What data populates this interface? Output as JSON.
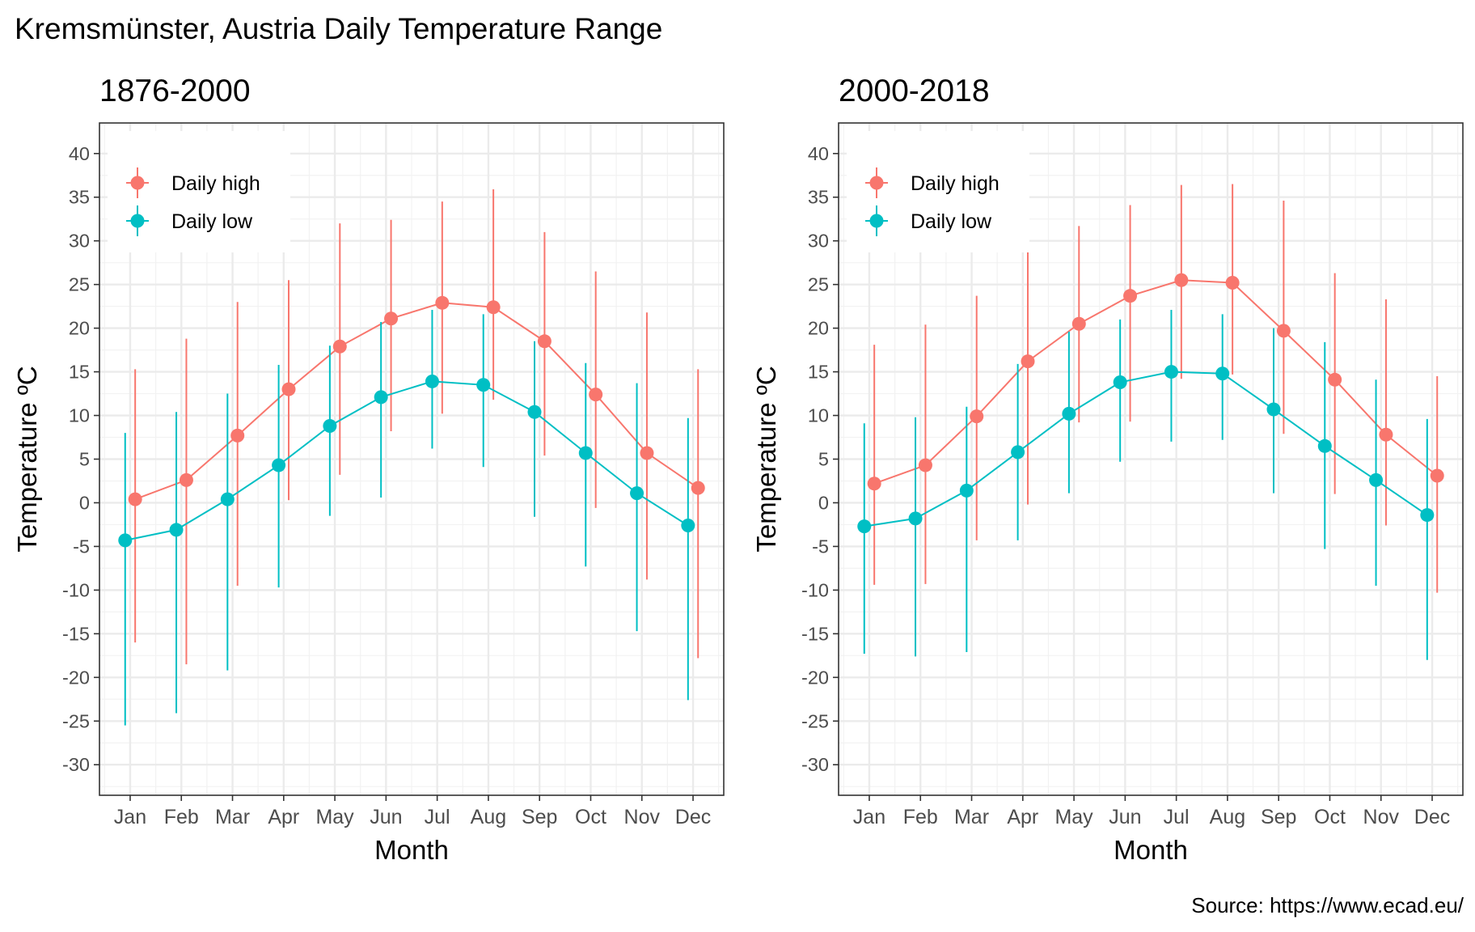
{
  "title": "Kremsmünster, Austria Daily Temperature Range",
  "caption": "Source: https://www.ecad.eu/",
  "colors": {
    "high": "#F8766D",
    "low": "#00BFC4",
    "grid_major": "#EBEBEB",
    "grid_minor": "#F2F2F2",
    "border": "#333333",
    "text": "#000000",
    "tick_text": "#4D4D4D"
  },
  "chart_data": [
    {
      "type": "line",
      "title": "1876-2000",
      "xlabel": "Month",
      "ylabel": "Temperature ºC",
      "ylim": [
        -33.5,
        43.5
      ],
      "yticks": [
        40,
        35,
        30,
        25,
        20,
        15,
        10,
        5,
        0,
        -5,
        -10,
        -15,
        -20,
        -25,
        -30
      ],
      "categories": [
        "Jan",
        "Feb",
        "Mar",
        "Apr",
        "May",
        "Jun",
        "Jul",
        "Aug",
        "Sep",
        "Oct",
        "Nov",
        "Dec"
      ],
      "grid": true,
      "legend_position": "top-left",
      "series": [
        {
          "name": "Daily high",
          "color_key": "high",
          "values": [
            0.4,
            2.6,
            7.7,
            13.0,
            17.9,
            21.1,
            22.9,
            22.4,
            18.5,
            12.4,
            5.7,
            1.7
          ],
          "range_min": [
            -16.0,
            -18.5,
            -9.5,
            0.3,
            3.2,
            8.2,
            10.2,
            11.8,
            5.4,
            -0.6,
            -8.8,
            -17.8
          ],
          "range_max": [
            15.3,
            18.8,
            23.0,
            25.5,
            32.0,
            32.4,
            34.5,
            35.9,
            31.0,
            26.5,
            21.8,
            15.3
          ]
        },
        {
          "name": "Daily low",
          "color_key": "low",
          "values": [
            -4.3,
            -3.1,
            0.4,
            4.3,
            8.8,
            12.1,
            13.9,
            13.5,
            10.4,
            5.7,
            1.1,
            -2.6
          ],
          "range_min": [
            -25.5,
            -24.1,
            -19.2,
            -9.7,
            -1.5,
            0.6,
            6.2,
            4.1,
            -1.6,
            -7.3,
            -14.7,
            -22.6
          ],
          "range_max": [
            8.0,
            10.4,
            12.5,
            15.8,
            18.0,
            20.7,
            22.1,
            21.6,
            18.5,
            16.0,
            13.7,
            9.7
          ]
        }
      ]
    },
    {
      "type": "line",
      "title": "2000-2018",
      "xlabel": "Month",
      "ylabel": "Temperature ºC",
      "ylim": [
        -33.5,
        43.5
      ],
      "yticks": [
        40,
        35,
        30,
        25,
        20,
        15,
        10,
        5,
        0,
        -5,
        -10,
        -15,
        -20,
        -25,
        -30
      ],
      "categories": [
        "Jan",
        "Feb",
        "Mar",
        "Apr",
        "May",
        "Jun",
        "Jul",
        "Aug",
        "Sep",
        "Oct",
        "Nov",
        "Dec"
      ],
      "grid": true,
      "legend_position": "top-left",
      "series": [
        {
          "name": "Daily high",
          "color_key": "high",
          "values": [
            2.2,
            4.3,
            9.9,
            16.2,
            20.5,
            23.7,
            25.5,
            25.2,
            19.7,
            14.1,
            7.8,
            3.1
          ],
          "range_min": [
            -9.4,
            -9.3,
            -4.3,
            -0.2,
            9.2,
            9.3,
            14.2,
            14.7,
            7.9,
            1.0,
            -2.6,
            -10.3
          ],
          "range_max": [
            18.1,
            20.4,
            23.7,
            28.7,
            31.7,
            34.1,
            36.4,
            36.5,
            34.6,
            26.3,
            23.3,
            14.5
          ]
        },
        {
          "name": "Daily low",
          "color_key": "low",
          "values": [
            -2.7,
            -1.8,
            1.4,
            5.8,
            10.2,
            13.8,
            15.0,
            14.8,
            10.7,
            6.5,
            2.6,
            -1.4
          ],
          "range_min": [
            -17.3,
            -17.6,
            -17.1,
            -4.3,
            1.1,
            4.7,
            7.0,
            7.2,
            1.1,
            -5.3,
            -9.5,
            -18.0
          ],
          "range_max": [
            9.1,
            9.8,
            11.0,
            15.9,
            19.6,
            21.0,
            22.1,
            21.6,
            20.0,
            18.4,
            14.1,
            9.6
          ]
        }
      ]
    }
  ]
}
